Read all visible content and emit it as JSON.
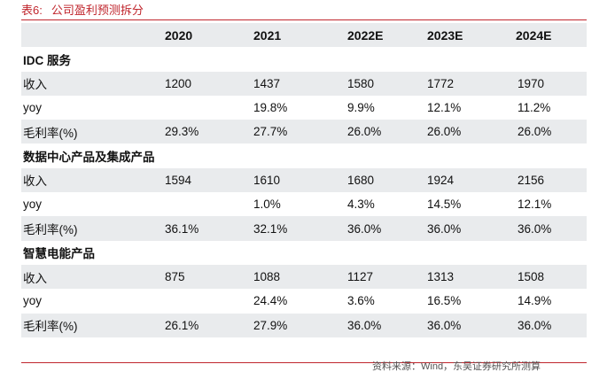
{
  "title": {
    "label": "表6:",
    "text": "公司盈利预测拆分"
  },
  "table": {
    "header": [
      "",
      "2020",
      "2021",
      "2022E",
      "2023E",
      "2024E"
    ],
    "rows": [
      {
        "type": "section",
        "cells": [
          "IDC 服务",
          "",
          "",
          "",
          "",
          ""
        ]
      },
      {
        "type": "shaded",
        "cells": [
          "收入",
          "1200",
          "1437",
          "1580",
          "1772",
          "1970"
        ]
      },
      {
        "type": "plain",
        "cells": [
          "yoy",
          "",
          "19.8%",
          "9.9%",
          "12.1%",
          "11.2%"
        ]
      },
      {
        "type": "shaded",
        "cells": [
          "毛利率(%)",
          "29.3%",
          "27.7%",
          "26.0%",
          "26.0%",
          "26.0%"
        ]
      },
      {
        "type": "section",
        "cells": [
          "数据中心产品及集成产品",
          "",
          "",
          "",
          "",
          ""
        ]
      },
      {
        "type": "shaded",
        "cells": [
          "收入",
          "1594",
          "1610",
          "1680",
          "1924",
          "2156"
        ]
      },
      {
        "type": "plain",
        "cells": [
          "yoy",
          "",
          "1.0%",
          "4.3%",
          "14.5%",
          "12.1%"
        ]
      },
      {
        "type": "shaded",
        "cells": [
          "毛利率(%)",
          "36.1%",
          "32.1%",
          "36.0%",
          "36.0%",
          "36.0%"
        ]
      },
      {
        "type": "section",
        "cells": [
          "智慧电能产品",
          "",
          "",
          "",
          "",
          ""
        ]
      },
      {
        "type": "shaded",
        "cells": [
          "收入",
          "875",
          "1088",
          "1127",
          "1313",
          "1508"
        ]
      },
      {
        "type": "plain",
        "cells": [
          "yoy",
          "",
          "24.4%",
          "3.6%",
          "16.5%",
          "14.9%"
        ]
      },
      {
        "type": "shaded",
        "cells": [
          "毛利率(%)",
          "26.1%",
          "27.9%",
          "36.0%",
          "36.0%",
          "36.0%"
        ]
      }
    ]
  },
  "source": "资料来源：Wind，东吴证券研究所测算"
}
